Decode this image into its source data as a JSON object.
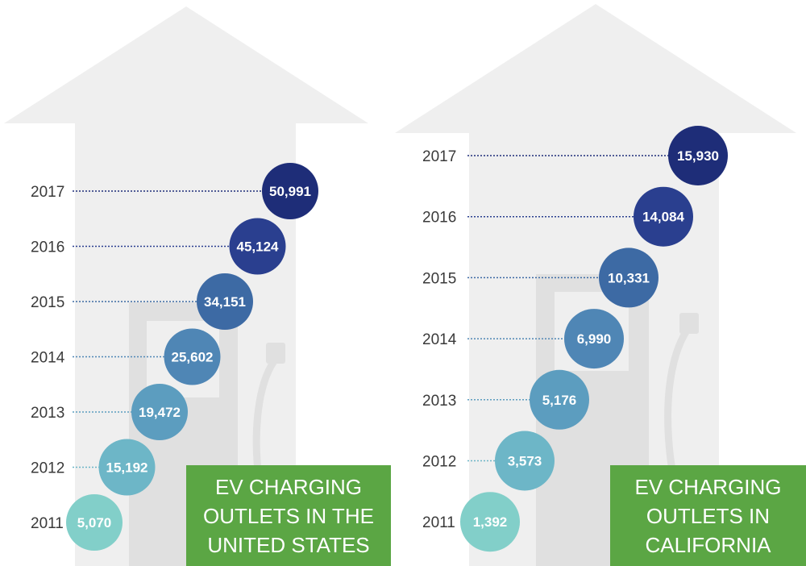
{
  "chart_data": [
    {
      "type": "scatter",
      "title_lines": [
        "EV CHARGING",
        "OUTLETS IN THE",
        "UNITED STATES"
      ],
      "categories": [
        "2011",
        "2012",
        "2013",
        "2014",
        "2015",
        "2016",
        "2017"
      ],
      "values": [
        5070,
        15192,
        19472,
        25602,
        34151,
        45124,
        50991
      ],
      "labels": [
        "5,070",
        "15,192",
        "19,472",
        "25,602",
        "34,151",
        "45,124",
        "50,991"
      ],
      "colors": [
        "#82cfc9",
        "#6db6c7",
        "#5c9dbf",
        "#4f86b5",
        "#3d6aa4",
        "#2a3f8f",
        "#1e2d78"
      ]
    },
    {
      "type": "scatter",
      "title_lines": [
        "EV CHARGING",
        "OUTLETS IN",
        "CALIFORNIA"
      ],
      "categories": [
        "2011",
        "2012",
        "2013",
        "2014",
        "2015",
        "2016",
        "2017"
      ],
      "values": [
        1392,
        3573,
        5176,
        6990,
        10331,
        14084,
        15930
      ],
      "labels": [
        "1,392",
        "3,573",
        "5,176",
        "6,990",
        "10,331",
        "14,084",
        "15,930"
      ],
      "colors": [
        "#82cfc9",
        "#6db6c7",
        "#5c9dbf",
        "#4f86b5",
        "#3d6aa4",
        "#2a3f8f",
        "#1e2d78"
      ]
    }
  ]
}
